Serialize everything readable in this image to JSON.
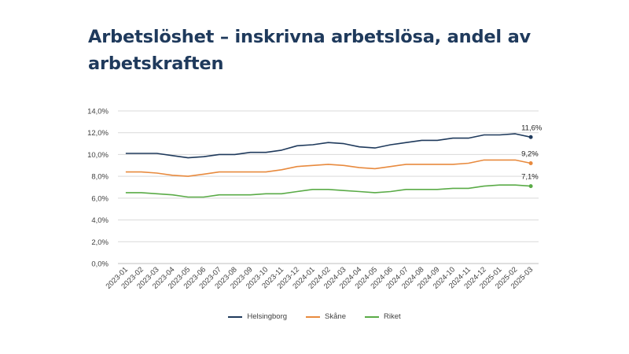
{
  "title": "Arbetslöshet – inskrivna arbetslösa, andel av arbetskraften",
  "chart_data": {
    "type": "line",
    "title": "Arbetslöshet – inskrivna arbetslösa, andel av arbetskraften",
    "xlabel": "",
    "ylabel": "",
    "ylim": [
      0,
      14
    ],
    "yticks": [
      "0,0%",
      "2,0%",
      "4,0%",
      "6,0%",
      "8,0%",
      "10,0%",
      "12,0%",
      "14,0%"
    ],
    "grid": true,
    "legend_position": "bottom",
    "categories": [
      "2023-01",
      "2023-02",
      "2023-03",
      "2023-04",
      "2023-05",
      "2023-06",
      "2023-07",
      "2023-08",
      "2023-09",
      "2023-10",
      "2023-11",
      "2023-12",
      "2024-01",
      "2024-02",
      "2024-03",
      "2024-04",
      "2024-05",
      "2024-06",
      "2024-07",
      "2024-08",
      "2024-09",
      "2024-10",
      "2024-11",
      "2024-12",
      "2025-01",
      "2025-02",
      "2025-03"
    ],
    "series": [
      {
        "name": "Helsingborg",
        "color": "#1f3a5c",
        "values": [
          10.1,
          10.1,
          10.1,
          9.9,
          9.7,
          9.8,
          10.0,
          10.0,
          10.2,
          10.2,
          10.4,
          10.8,
          10.9,
          11.1,
          11.0,
          10.7,
          10.6,
          10.9,
          11.1,
          11.3,
          11.3,
          11.5,
          11.5,
          11.8,
          11.8,
          11.9,
          11.6
        ],
        "end_label": "11,6%"
      },
      {
        "name": "Skåne",
        "color": "#e88a3e",
        "values": [
          8.4,
          8.4,
          8.3,
          8.1,
          8.0,
          8.2,
          8.4,
          8.4,
          8.4,
          8.4,
          8.6,
          8.9,
          9.0,
          9.1,
          9.0,
          8.8,
          8.7,
          8.9,
          9.1,
          9.1,
          9.1,
          9.1,
          9.2,
          9.5,
          9.5,
          9.5,
          9.2
        ],
        "end_label": "9,2%"
      },
      {
        "name": "Riket",
        "color": "#5aab47",
        "values": [
          6.5,
          6.5,
          6.4,
          6.3,
          6.1,
          6.1,
          6.3,
          6.3,
          6.3,
          6.4,
          6.4,
          6.6,
          6.8,
          6.8,
          6.7,
          6.6,
          6.5,
          6.6,
          6.8,
          6.8,
          6.8,
          6.9,
          6.9,
          7.1,
          7.2,
          7.2,
          7.1
        ],
        "end_label": "7,1%"
      }
    ]
  }
}
